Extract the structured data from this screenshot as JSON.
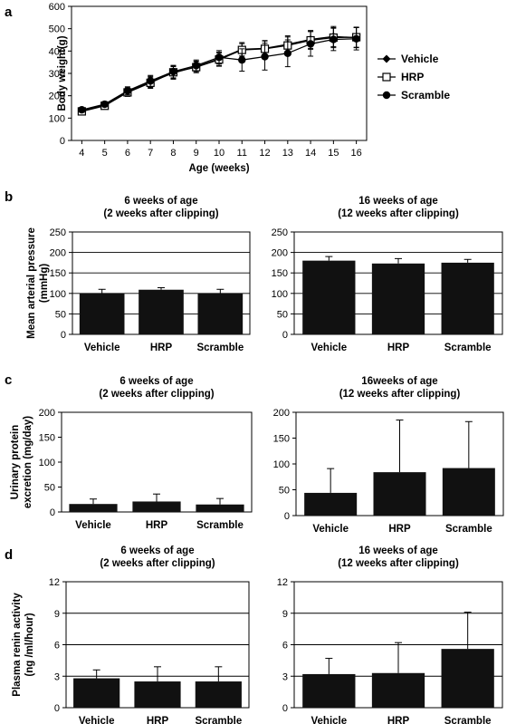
{
  "chart_data": [
    {
      "id": "a",
      "panel_label": "a",
      "type": "line",
      "xlabel": "Age (weeks)",
      "ylabel": "Body weight(g)",
      "x": [
        4,
        5,
        6,
        7,
        8,
        9,
        10,
        11,
        12,
        13,
        14,
        15,
        16
      ],
      "ylim": [
        0,
        600
      ],
      "yticks": [
        0,
        100,
        200,
        300,
        400,
        500,
        600
      ],
      "grid": false,
      "legend": "right",
      "series": [
        {
          "name": "Vehicle",
          "marker": "diamond",
          "values": [
            133,
            158,
            218,
            262,
            302,
            330,
            365,
            408,
            412,
            430,
            452,
            465,
            460
          ],
          "errors": [
            10,
            12,
            18,
            25,
            28,
            25,
            30,
            30,
            35,
            38,
            40,
            45,
            45
          ]
        },
        {
          "name": "HRP",
          "marker": "square",
          "values": [
            130,
            155,
            215,
            258,
            305,
            328,
            362,
            405,
            410,
            425,
            448,
            460,
            462
          ],
          "errors": [
            10,
            12,
            18,
            25,
            28,
            25,
            30,
            28,
            35,
            38,
            40,
            45,
            45
          ]
        },
        {
          "name": "Scramble",
          "marker": "circle",
          "values": [
            137,
            162,
            222,
            266,
            308,
            335,
            372,
            360,
            375,
            390,
            432,
            452,
            455
          ],
          "errors": [
            10,
            12,
            18,
            25,
            28,
            25,
            30,
            50,
            60,
            60,
            55,
            50,
            50
          ]
        }
      ]
    },
    {
      "id": "b1",
      "panel_label": "b",
      "type": "bar",
      "title": [
        "6 weeks of age",
        "(2 weeks after clipping)"
      ],
      "ylabel": [
        "Mean arterial pressure",
        "(mmHg)"
      ],
      "categories": [
        "Vehicle",
        "HRP",
        "Scramble"
      ],
      "values": [
        100,
        109,
        100
      ],
      "errors": [
        10,
        5,
        10
      ],
      "ylim": [
        0,
        250
      ],
      "yticks": [
        0,
        50,
        100,
        150,
        200,
        250
      ],
      "grid": true
    },
    {
      "id": "b2",
      "type": "bar",
      "title": [
        "16 weeks of age",
        "(12 weeks after clipping)"
      ],
      "categories": [
        "Vehicle",
        "HRP",
        "Scramble"
      ],
      "values": [
        180,
        173,
        175
      ],
      "errors": [
        10,
        12,
        8
      ],
      "ylim": [
        0,
        250
      ],
      "yticks": [
        0,
        50,
        100,
        150,
        200,
        250
      ],
      "grid": true
    },
    {
      "id": "c1",
      "panel_label": "c",
      "type": "bar",
      "title": [
        "6 weeks of age",
        "(2 weeks after clipping)"
      ],
      "ylabel": [
        "Urinary protein",
        "excretion (mg/day)"
      ],
      "categories": [
        "Vehicle",
        "HRP",
        "Scramble"
      ],
      "values": [
        16,
        21,
        15
      ],
      "errors": [
        10,
        15,
        12
      ],
      "ylim": [
        0,
        200
      ],
      "yticks": [
        0,
        50,
        100,
        150,
        200
      ],
      "grid": false
    },
    {
      "id": "c2",
      "type": "bar",
      "title": [
        "16weeks of age",
        "(12 weeks after clipping)"
      ],
      "categories": [
        "Vehicle",
        "HRP",
        "Scramble"
      ],
      "values": [
        44,
        84,
        92
      ],
      "errors": [
        47,
        101,
        90
      ],
      "ylim": [
        0,
        200
      ],
      "yticks": [
        0,
        50,
        100,
        150,
        200
      ],
      "grid": false
    },
    {
      "id": "d1",
      "panel_label": "d",
      "type": "bar",
      "title": [
        "6 weeks of age",
        "(2 weeks after clipping)"
      ],
      "ylabel": [
        "Plasma renin activity",
        "(ng /ml/hour)"
      ],
      "categories": [
        "Vehicle",
        "HRP",
        "Scramble"
      ],
      "values": [
        2.8,
        2.5,
        2.5
      ],
      "errors": [
        0.8,
        1.4,
        1.4
      ],
      "ylim": [
        0,
        12
      ],
      "yticks": [
        0,
        3,
        6,
        9,
        12
      ],
      "grid": true
    },
    {
      "id": "d2",
      "type": "bar",
      "title": [
        "16 weeks of age",
        "(12 weeks after clipping)"
      ],
      "categories": [
        "Vehicle",
        "HRP",
        "Scramble"
      ],
      "values": [
        3.2,
        3.3,
        5.6
      ],
      "errors": [
        1.5,
        2.9,
        3.5
      ],
      "ylim": [
        0,
        12
      ],
      "yticks": [
        0,
        3,
        6,
        9,
        12
      ],
      "grid": true
    }
  ]
}
